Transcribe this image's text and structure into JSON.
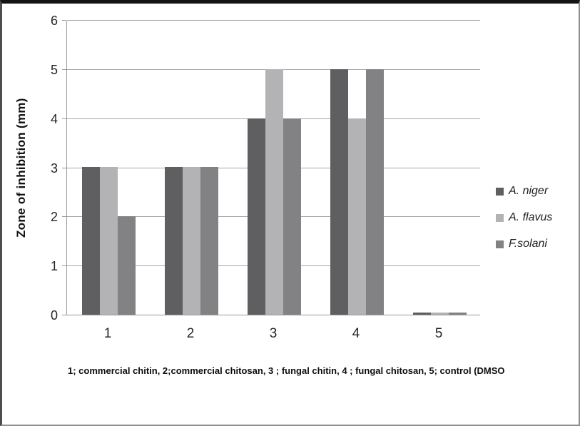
{
  "chart_data": {
    "type": "bar",
    "title": "",
    "xlabel": "",
    "ylabel": "Zone of inhibition (mm)",
    "ylim": [
      0,
      6
    ],
    "ytick_step": 1,
    "grid": "horizontal",
    "legend_position": "right",
    "categories": [
      "1",
      "2",
      "3",
      "4",
      "5"
    ],
    "series": [
      {
        "name": "A. niger",
        "color": "#5f5f61",
        "values": [
          3,
          3,
          4,
          5,
          0.05
        ]
      },
      {
        "name": "A. flavus",
        "color": "#b3b3b5",
        "values": [
          3,
          3,
          5,
          4,
          0.05
        ]
      },
      {
        "name": "F.solani",
        "color": "#828285",
        "values": [
          2,
          3,
          4,
          5,
          0.05
        ]
      }
    ],
    "caption": "1; commercial  chitin, 2;commercial  chitosan, 3 ; fungal  chitin, 4 ; fungal  chitosan, 5; control (DMSO"
  },
  "frame": {
    "background": "#ffffff",
    "gridline_color": "#a6a6a6",
    "axis_color": "#9a9a9a"
  }
}
